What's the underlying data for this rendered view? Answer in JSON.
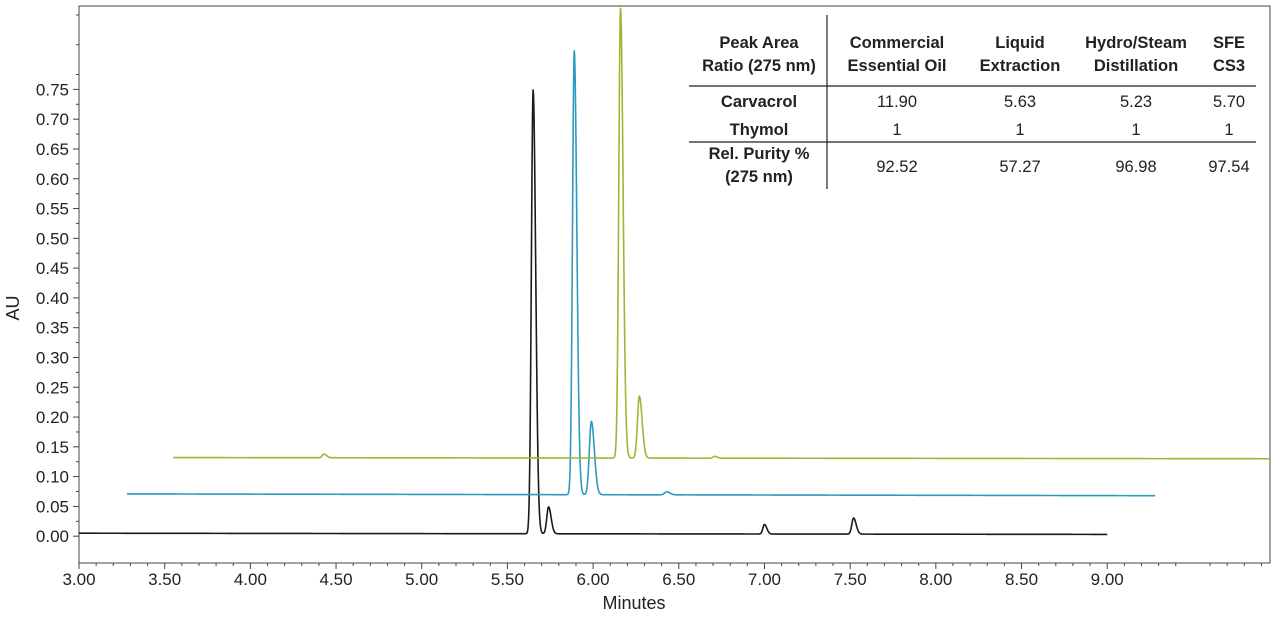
{
  "chart_data": {
    "type": "line",
    "title": "",
    "xlabel": "Minutes",
    "ylabel": "AU",
    "xlim": [
      3.0,
      9.95
    ],
    "ylim": [
      -0.045,
      0.89
    ],
    "x_ticks": [
      "3.00",
      "3.50",
      "4.00",
      "4.50",
      "5.00",
      "5.50",
      "6.00",
      "6.50",
      "7.00",
      "7.50",
      "8.00",
      "8.50",
      "9.00"
    ],
    "y_ticks": [
      "0.00",
      "0.05",
      "0.10",
      "0.15",
      "0.20",
      "0.25",
      "0.30",
      "0.35",
      "0.40",
      "0.45",
      "0.50",
      "0.55",
      "0.60",
      "0.65",
      "0.70",
      "0.75"
    ],
    "grid": false,
    "series": [
      {
        "color": "#1a1a1a",
        "x_start": 3.0,
        "x_end": 9.0,
        "baseline_start": 0.005,
        "baseline_end": 0.003,
        "peaks": [
          {
            "x": 5.65,
            "height": 0.745,
            "width": 0.012
          },
          {
            "x": 5.74,
            "height": 0.045,
            "width": 0.012
          },
          {
            "x": 7.0,
            "height": 0.016,
            "width": 0.011
          },
          {
            "x": 7.52,
            "height": 0.027,
            "width": 0.012
          }
        ]
      },
      {
        "color": "#2a9bbf",
        "x_start": 3.28,
        "x_end": 9.28,
        "baseline_start": 0.071,
        "baseline_end": 0.068,
        "peaks": [
          {
            "x": 5.89,
            "height": 0.745,
            "width": 0.012
          },
          {
            "x": 5.99,
            "height": 0.123,
            "width": 0.014
          },
          {
            "x": 6.43,
            "height": 0.005,
            "width": 0.015
          }
        ]
      },
      {
        "color": "#9ab832",
        "x_start": 3.55,
        "x_end": 9.95,
        "baseline_start": 0.132,
        "baseline_end": 0.13,
        "peaks": [
          {
            "x": 4.43,
            "height": 0.006,
            "width": 0.012
          },
          {
            "x": 6.16,
            "height": 0.755,
            "width": 0.012
          },
          {
            "x": 6.27,
            "height": 0.104,
            "width": 0.013
          },
          {
            "x": 6.71,
            "height": 0.003,
            "width": 0.012
          }
        ]
      }
    ],
    "table": {
      "headers": [
        [
          "Peak Area",
          "Ratio (275 nm)"
        ],
        [
          "Commercial",
          "Essential Oil"
        ],
        [
          "Liquid",
          "Extraction"
        ],
        [
          "Hydro/Steam",
          "Distillation"
        ],
        [
          "SFE",
          "CS3"
        ]
      ],
      "rows": [
        {
          "label": [
            "Carvacrol"
          ],
          "values": [
            "11.90",
            "5.63",
            "5.23",
            "5.70"
          ]
        },
        {
          "label": [
            "Thymol"
          ],
          "values": [
            "1",
            "1",
            "1",
            "1"
          ]
        },
        {
          "label": [
            "Rel. Purity %",
            "(275 nm)"
          ],
          "values": [
            "92.52",
            "57.27",
            "96.98",
            "97.54"
          ]
        }
      ]
    }
  }
}
